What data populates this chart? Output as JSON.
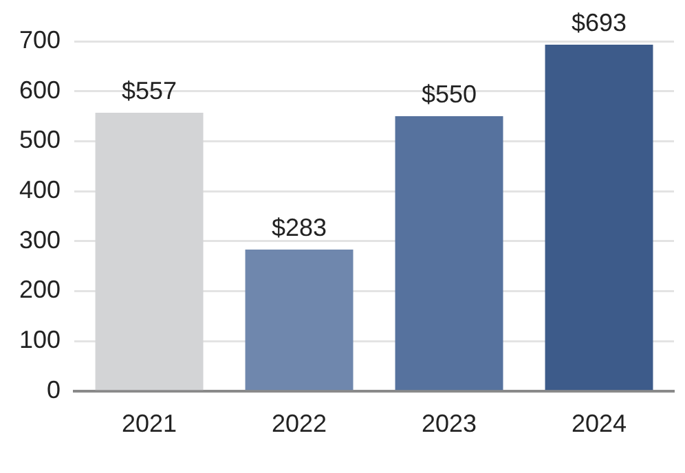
{
  "chart_data": {
    "type": "bar",
    "categories": [
      "2021",
      "2022",
      "2023",
      "2024"
    ],
    "values": [
      557,
      283,
      550,
      693
    ],
    "colors": [
      "#d3d4d6",
      "#6f87ad",
      "#56729e",
      "#3d5b8a"
    ],
    "value_labels": [
      "$557",
      "$283",
      "$550",
      "$693"
    ],
    "ylim": [
      0,
      700
    ],
    "yticks": [
      0,
      100,
      200,
      300,
      400,
      500,
      600,
      700
    ],
    "grid": "y"
  }
}
